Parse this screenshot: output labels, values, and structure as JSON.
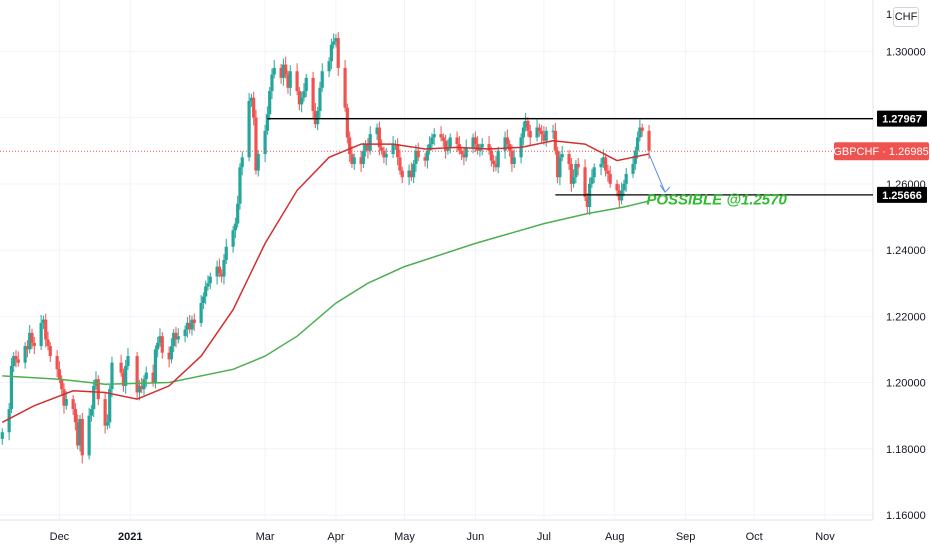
{
  "currency_button": "CHF",
  "chart_data": {
    "type": "candlestick",
    "symbol_tag": "GBPCHF",
    "last_price": "1.26985",
    "colors": {
      "up": "#26a69a",
      "down": "#ef5350",
      "ma_fast": "#d32f2f",
      "ma_slow": "#4caf50",
      "annotation": "#2ebd2e",
      "arrow": "#5b8def"
    },
    "y_ticks": [
      "1.16000",
      "1.18000",
      "1.20000",
      "1.22000",
      "1.24000",
      "1.26000",
      "1.28000",
      "1.30000"
    ],
    "y_top_label": "1.",
    "ylim": [
      1.1585,
      1.3155
    ],
    "x_labels": [
      {
        "label": "Dec",
        "date": "2020-12-01",
        "bold": false
      },
      {
        "label": "2021",
        "date": "2021-01-01",
        "bold": true
      },
      {
        "label": "Mar",
        "date": "2021-03-01",
        "bold": false
      },
      {
        "label": "Apr",
        "date": "2021-04-01",
        "bold": false
      },
      {
        "label": "May",
        "date": "2021-05-01",
        "bold": false
      },
      {
        "label": "Jun",
        "date": "2021-06-01",
        "bold": false
      },
      {
        "label": "Jul",
        "date": "2021-07-01",
        "bold": false
      },
      {
        "label": "Aug",
        "date": "2021-08-01",
        "bold": false
      },
      {
        "label": "Sep",
        "date": "2021-09-01",
        "bold": false
      },
      {
        "label": "Oct",
        "date": "2021-10-01",
        "bold": false
      },
      {
        "label": "Nov",
        "date": "2021-11-01",
        "bold": false
      }
    ],
    "xlim": [
      "2020-11-05",
      "2021-11-22"
    ],
    "closes": [
      [
        "2020-11-06",
        1.185
      ],
      [
        "2020-11-09",
        1.192
      ],
      [
        "2020-11-10",
        1.205
      ],
      [
        "2020-11-11",
        1.208
      ],
      [
        "2020-11-12",
        1.207
      ],
      [
        "2020-11-13",
        1.206
      ],
      [
        "2020-11-16",
        1.211
      ],
      [
        "2020-11-17",
        1.21
      ],
      [
        "2020-11-18",
        1.215
      ],
      [
        "2020-11-19",
        1.212
      ],
      [
        "2020-11-20",
        1.211
      ],
      [
        "2020-11-23",
        1.218
      ],
      [
        "2020-11-24",
        1.219
      ],
      [
        "2020-11-25",
        1.213
      ],
      [
        "2020-11-26",
        1.211
      ],
      [
        "2020-11-27",
        1.208
      ],
      [
        "2020-11-30",
        1.204
      ],
      [
        "2020-12-01",
        1.201
      ],
      [
        "2020-12-02",
        1.198
      ],
      [
        "2020-12-03",
        1.193
      ],
      [
        "2020-12-04",
        1.195
      ],
      [
        "2020-12-07",
        1.192
      ],
      [
        "2020-12-08",
        1.188
      ],
      [
        "2020-12-09",
        1.181
      ],
      [
        "2020-12-10",
        1.189
      ],
      [
        "2020-12-11",
        1.178
      ],
      [
        "2020-12-14",
        1.19
      ],
      [
        "2020-12-15",
        1.192
      ],
      [
        "2020-12-16",
        1.199
      ],
      [
        "2020-12-17",
        1.201
      ],
      [
        "2020-12-18",
        1.195
      ],
      [
        "2020-12-21",
        1.187
      ],
      [
        "2020-12-22",
        1.188
      ],
      [
        "2020-12-23",
        1.198
      ],
      [
        "2020-12-24",
        1.206
      ],
      [
        "2020-12-28",
        1.203
      ],
      [
        "2020-12-29",
        1.199
      ],
      [
        "2020-12-30",
        1.205
      ],
      [
        "2020-12-31",
        1.208
      ],
      [
        "2021-01-04",
        1.197
      ],
      [
        "2021-01-05",
        1.199
      ],
      [
        "2021-01-06",
        1.198
      ],
      [
        "2021-01-07",
        1.201
      ],
      [
        "2021-01-08",
        1.203
      ],
      [
        "2021-01-11",
        1.2
      ],
      [
        "2021-01-12",
        1.21
      ],
      [
        "2021-01-13",
        1.212
      ],
      [
        "2021-01-14",
        1.214
      ],
      [
        "2021-01-15",
        1.209
      ],
      [
        "2021-01-18",
        1.207
      ],
      [
        "2021-01-19",
        1.211
      ],
      [
        "2021-01-20",
        1.215
      ],
      [
        "2021-01-21",
        1.213
      ],
      [
        "2021-01-22",
        1.214
      ],
      [
        "2021-01-25",
        1.216
      ],
      [
        "2021-01-26",
        1.218
      ],
      [
        "2021-01-27",
        1.216
      ],
      [
        "2021-01-28",
        1.219
      ],
      [
        "2021-01-29",
        1.218
      ],
      [
        "2021-02-01",
        1.224
      ],
      [
        "2021-02-02",
        1.226
      ],
      [
        "2021-02-03",
        1.229
      ],
      [
        "2021-02-04",
        1.23
      ],
      [
        "2021-02-05",
        1.232
      ],
      [
        "2021-02-08",
        1.235
      ],
      [
        "2021-02-09",
        1.233
      ],
      [
        "2021-02-10",
        1.232
      ],
      [
        "2021-02-11",
        1.237
      ],
      [
        "2021-02-12",
        1.241
      ],
      [
        "2021-02-15",
        1.246
      ],
      [
        "2021-02-16",
        1.248
      ],
      [
        "2021-02-17",
        1.254
      ],
      [
        "2021-02-18",
        1.265
      ],
      [
        "2021-02-19",
        1.268
      ],
      [
        "2021-02-22",
        1.285
      ],
      [
        "2021-02-23",
        1.286
      ],
      [
        "2021-02-24",
        1.28
      ],
      [
        "2021-02-25",
        1.264
      ],
      [
        "2021-02-26",
        1.269
      ],
      [
        "2021-03-01",
        1.276
      ],
      [
        "2021-03-02",
        1.281
      ],
      [
        "2021-03-03",
        1.288
      ],
      [
        "2021-03-04",
        1.293
      ],
      [
        "2021-03-05",
        1.295
      ],
      [
        "2021-03-08",
        1.292
      ],
      [
        "2021-03-09",
        1.296
      ],
      [
        "2021-03-10",
        1.293
      ],
      [
        "2021-03-11",
        1.289
      ],
      [
        "2021-03-12",
        1.294
      ],
      [
        "2021-03-15",
        1.288
      ],
      [
        "2021-03-16",
        1.284
      ],
      [
        "2021-03-17",
        1.286
      ],
      [
        "2021-03-18",
        1.288
      ],
      [
        "2021-03-19",
        1.292
      ],
      [
        "2021-03-22",
        1.282
      ],
      [
        "2021-03-23",
        1.278
      ],
      [
        "2021-03-24",
        1.282
      ],
      [
        "2021-03-25",
        1.289
      ],
      [
        "2021-03-26",
        1.294
      ],
      [
        "2021-03-29",
        1.297
      ],
      [
        "2021-03-30",
        1.302
      ],
      [
        "2021-03-31",
        1.303
      ],
      [
        "2021-04-01",
        1.304
      ],
      [
        "2021-04-02",
        1.295
      ],
      [
        "2021-04-05",
        1.283
      ],
      [
        "2021-04-06",
        1.274
      ],
      [
        "2021-04-07",
        1.269
      ],
      [
        "2021-04-08",
        1.266
      ],
      [
        "2021-04-09",
        1.268
      ],
      [
        "2021-04-12",
        1.266
      ],
      [
        "2021-04-13",
        1.27
      ],
      [
        "2021-04-14",
        1.272
      ],
      [
        "2021-04-15",
        1.27
      ],
      [
        "2021-04-16",
        1.275
      ],
      [
        "2021-04-19",
        1.277
      ],
      [
        "2021-04-20",
        1.271
      ],
      [
        "2021-04-21",
        1.27
      ],
      [
        "2021-04-22",
        1.268
      ],
      [
        "2021-04-23",
        1.269
      ],
      [
        "2021-04-26",
        1.272
      ],
      [
        "2021-04-27",
        1.272
      ],
      [
        "2021-04-28",
        1.268
      ],
      [
        "2021-04-29",
        1.264
      ],
      [
        "2021-04-30",
        1.262
      ],
      [
        "2021-05-03",
        1.264
      ],
      [
        "2021-05-04",
        1.262
      ],
      [
        "2021-05-05",
        1.266
      ],
      [
        "2021-05-06",
        1.27
      ],
      [
        "2021-05-07",
        1.268
      ],
      [
        "2021-05-10",
        1.267
      ],
      [
        "2021-05-11",
        1.27
      ],
      [
        "2021-05-12",
        1.272
      ],
      [
        "2021-05-13",
        1.274
      ],
      [
        "2021-05-14",
        1.275
      ],
      [
        "2021-05-17",
        1.274
      ],
      [
        "2021-05-18",
        1.273
      ],
      [
        "2021-05-19",
        1.27
      ],
      [
        "2021-05-20",
        1.271
      ],
      [
        "2021-05-21",
        1.274
      ],
      [
        "2021-05-24",
        1.272
      ],
      [
        "2021-05-25",
        1.27
      ],
      [
        "2021-05-26",
        1.269
      ],
      [
        "2021-05-27",
        1.268
      ],
      [
        "2021-05-28",
        1.271
      ],
      [
        "2021-05-31",
        1.274
      ],
      [
        "2021-06-01",
        1.272
      ],
      [
        "2021-06-02",
        1.27
      ],
      [
        "2021-06-03",
        1.271
      ],
      [
        "2021-06-04",
        1.272
      ],
      [
        "2021-06-07",
        1.27
      ],
      [
        "2021-06-08",
        1.267
      ],
      [
        "2021-06-09",
        1.266
      ],
      [
        "2021-06-10",
        1.265
      ],
      [
        "2021-06-11",
        1.27
      ],
      [
        "2021-06-14",
        1.274
      ],
      [
        "2021-06-15",
        1.272
      ],
      [
        "2021-06-16",
        1.27
      ],
      [
        "2021-06-17",
        1.266
      ],
      [
        "2021-06-18",
        1.268
      ],
      [
        "2021-06-21",
        1.274
      ],
      [
        "2021-06-22",
        1.277
      ],
      [
        "2021-06-23",
        1.279
      ],
      [
        "2021-06-24",
        1.276
      ],
      [
        "2021-06-25",
        1.274
      ],
      [
        "2021-06-28",
        1.277
      ],
      [
        "2021-06-29",
        1.276
      ],
      [
        "2021-06-30",
        1.275
      ],
      [
        "2021-07-01",
        1.273
      ],
      [
        "2021-07-02",
        1.276
      ],
      [
        "2021-07-05",
        1.276
      ],
      [
        "2021-07-06",
        1.27
      ],
      [
        "2021-07-07",
        1.262
      ],
      [
        "2021-07-08",
        1.268
      ],
      [
        "2021-07-09",
        1.269
      ],
      [
        "2021-07-12",
        1.266
      ],
      [
        "2021-07-13",
        1.26
      ],
      [
        "2021-07-14",
        1.262
      ],
      [
        "2021-07-15",
        1.266
      ],
      [
        "2021-07-16",
        1.265
      ],
      [
        "2021-07-19",
        1.256
      ],
      [
        "2021-07-20",
        1.253
      ],
      [
        "2021-07-21",
        1.26
      ],
      [
        "2021-07-22",
        1.262
      ],
      [
        "2021-07-23",
        1.265
      ],
      [
        "2021-07-26",
        1.266
      ],
      [
        "2021-07-27",
        1.268
      ],
      [
        "2021-07-28",
        1.264
      ],
      [
        "2021-07-29",
        1.263
      ],
      [
        "2021-07-30",
        1.26
      ],
      [
        "2021-08-02",
        1.258
      ],
      [
        "2021-08-03",
        1.255
      ],
      [
        "2021-08-04",
        1.258
      ],
      [
        "2021-08-05",
        1.26
      ],
      [
        "2021-08-06",
        1.263
      ],
      [
        "2021-08-09",
        1.266
      ],
      [
        "2021-08-10",
        1.27
      ],
      [
        "2021-08-11",
        1.274
      ],
      [
        "2021-08-12",
        1.277
      ],
      [
        "2021-08-13",
        1.276
      ],
      [
        "2021-08-16",
        1.27
      ]
    ],
    "ma_fast_points": [
      [
        "2020-11-06",
        1.188
      ],
      [
        "2020-11-20",
        1.193
      ],
      [
        "2020-12-07",
        1.1975
      ],
      [
        "2020-12-21",
        1.197
      ],
      [
        "2021-01-04",
        1.195
      ],
      [
        "2021-01-18",
        1.199
      ],
      [
        "2021-02-01",
        1.208
      ],
      [
        "2021-02-15",
        1.222
      ],
      [
        "2021-03-01",
        1.242
      ],
      [
        "2021-03-15",
        1.258
      ],
      [
        "2021-03-29",
        1.268
      ],
      [
        "2021-04-12",
        1.272
      ],
      [
        "2021-04-26",
        1.272
      ],
      [
        "2021-05-10",
        1.2705
      ],
      [
        "2021-05-24",
        1.271
      ],
      [
        "2021-06-07",
        1.2705
      ],
      [
        "2021-06-21",
        1.271
      ],
      [
        "2021-07-05",
        1.273
      ],
      [
        "2021-07-19",
        1.272
      ],
      [
        "2021-08-02",
        1.267
      ],
      [
        "2021-08-09",
        1.268
      ],
      [
        "2021-08-16",
        1.269
      ]
    ],
    "ma_slow_points": [
      [
        "2020-11-06",
        1.202
      ],
      [
        "2020-12-01",
        1.201
      ],
      [
        "2020-12-21",
        1.1995
      ],
      [
        "2021-01-18",
        1.2
      ],
      [
        "2021-02-15",
        1.204
      ],
      [
        "2021-03-01",
        1.208
      ],
      [
        "2021-03-15",
        1.214
      ],
      [
        "2021-04-01",
        1.224
      ],
      [
        "2021-04-15",
        1.23
      ],
      [
        "2021-05-01",
        1.235
      ],
      [
        "2021-06-01",
        1.242
      ],
      [
        "2021-07-01",
        1.248
      ],
      [
        "2021-07-20",
        1.251
      ],
      [
        "2021-08-05",
        1.253
      ],
      [
        "2021-08-16",
        1.2548
      ]
    ],
    "resistance": {
      "label": "1.27967",
      "value": 1.27967,
      "from": "2021-03-02"
    },
    "support": {
      "label": "1.25666",
      "value": 1.25666,
      "from": "2021-07-06"
    },
    "projection_arrow": {
      "from": [
        "2021-08-16",
        1.269
      ],
      "to": [
        "2021-08-23",
        1.2575
      ]
    },
    "annotation": {
      "text": "POSSIBLE @1.2570",
      "date": "2021-08-17",
      "value": 1.2538
    }
  }
}
